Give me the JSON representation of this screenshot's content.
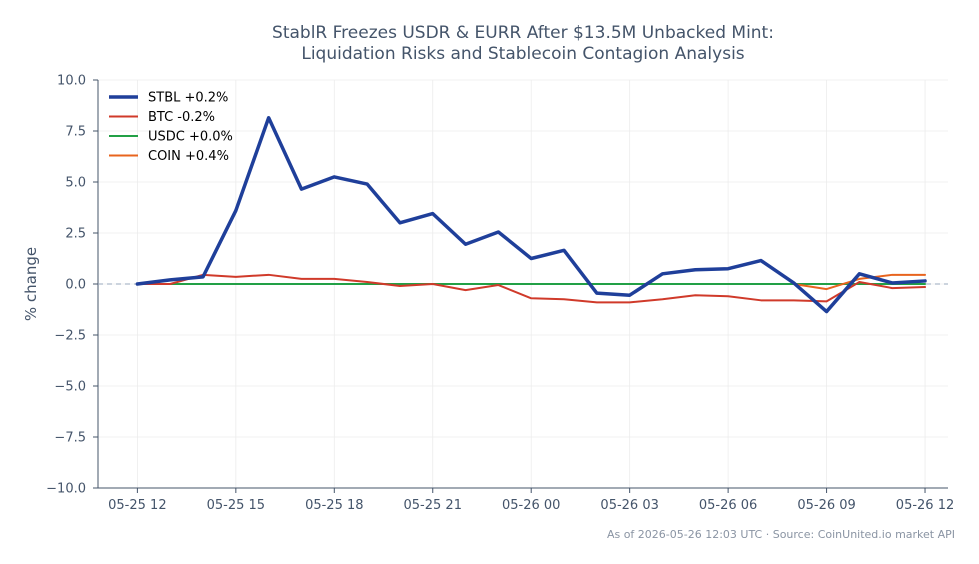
{
  "chart_data": {
    "type": "line",
    "title_lines": [
      "StablR Freezes USDR & EURR After $13.5M Unbacked Mint:",
      "Liquidation Risks and Stablecoin Contagion Analysis"
    ],
    "ylabel": "% change",
    "ylim": [
      -10,
      10
    ],
    "yticks": [
      -10,
      -7.5,
      -5,
      -2.5,
      0,
      2.5,
      5,
      7.5,
      10
    ],
    "ytick_labels": [
      "−10.0",
      "−7.5",
      "−5.0",
      "−2.5",
      "0.0",
      "2.5",
      "5.0",
      "7.5",
      "10.0"
    ],
    "xlim": [
      -1.2,
      24.7
    ],
    "xticks": [
      0,
      3,
      6,
      9,
      12,
      15,
      18,
      21,
      24
    ],
    "xtick_labels": [
      "05-25 12",
      "05-25 15",
      "05-25 18",
      "05-25 21",
      "05-26 00",
      "05-26 03",
      "05-26 06",
      "05-26 09",
      "05-26 12"
    ],
    "zero_line": true,
    "grid": true,
    "legend_position": "top-left",
    "x": [
      0,
      1,
      2,
      3,
      4,
      5,
      6,
      7,
      8,
      9,
      10,
      11,
      12,
      13,
      14,
      15,
      16,
      17,
      18,
      19,
      20,
      21,
      22,
      23,
      24
    ],
    "series": [
      {
        "name": "STBL +0.2%",
        "color": "#1f3f9a",
        "width": 3.5,
        "values": [
          0.0,
          0.2,
          0.35,
          3.6,
          8.15,
          4.65,
          5.25,
          4.9,
          3.0,
          3.45,
          1.95,
          2.55,
          1.25,
          1.65,
          -0.45,
          -0.55,
          0.5,
          0.7,
          0.75,
          1.15,
          0.05,
          -1.35,
          0.5,
          0.05,
          0.15
        ]
      },
      {
        "name": "BTC -0.2%",
        "color": "#d03a2a",
        "width": 2,
        "values": [
          0.0,
          0.0,
          0.45,
          0.35,
          0.45,
          0.25,
          0.25,
          0.1,
          -0.1,
          0.0,
          -0.3,
          -0.05,
          -0.7,
          -0.75,
          -0.9,
          -0.9,
          -0.75,
          -0.55,
          -0.6,
          -0.8,
          -0.8,
          -0.85,
          0.1,
          -0.2,
          -0.15
        ]
      },
      {
        "name": "USDC +0.0%",
        "color": "#22a046",
        "width": 2,
        "values": [
          0.0,
          0.0,
          0.0,
          0.0,
          0.0,
          0.0,
          0.0,
          0.0,
          0.0,
          0.0,
          0.0,
          0.0,
          0.0,
          0.0,
          0.0,
          0.0,
          0.0,
          0.0,
          0.0,
          0.0,
          0.0,
          0.0,
          0.0,
          0.0,
          0.0
        ]
      },
      {
        "name": "COIN +0.4%",
        "color": "#e8641e",
        "width": 2,
        "values": [
          null,
          null,
          null,
          null,
          null,
          null,
          null,
          null,
          null,
          null,
          null,
          null,
          null,
          null,
          null,
          null,
          null,
          null,
          null,
          null,
          0.0,
          -0.25,
          0.25,
          0.45,
          0.45
        ]
      }
    ]
  },
  "footer": {
    "source_text": "As of 2026-05-26 12:03 UTC · Source: CoinUnited.io market API"
  }
}
